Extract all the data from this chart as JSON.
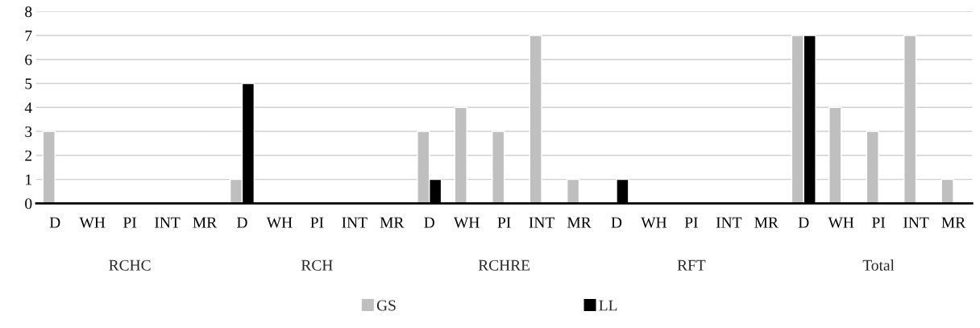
{
  "chart_data": {
    "type": "bar",
    "categories": [
      "D",
      "WH",
      "PI",
      "INT",
      "MR",
      "D",
      "WH",
      "PI",
      "INT",
      "MR",
      "D",
      "WH",
      "PI",
      "INT",
      "MR",
      "D",
      "WH",
      "PI",
      "INT",
      "MR",
      "D",
      "WH",
      "PI",
      "INT",
      "MR"
    ],
    "series": [
      {
        "name": "GS",
        "color": "#bfbfbf",
        "values": [
          3,
          null,
          null,
          null,
          null,
          1,
          null,
          null,
          null,
          null,
          3,
          4,
          3,
          7,
          1,
          null,
          null,
          null,
          null,
          null,
          7,
          4,
          3,
          7,
          1
        ]
      },
      {
        "name": "LL",
        "color": "#000000",
        "values": [
          null,
          null,
          null,
          null,
          null,
          5,
          null,
          null,
          null,
          null,
          1,
          null,
          null,
          null,
          null,
          1,
          null,
          null,
          null,
          null,
          7,
          null,
          null,
          null,
          null
        ]
      }
    ],
    "annotations": [
      "RCHC",
      "RCH",
      "RCHRE",
      "RFT",
      "Total"
    ],
    "ylim": [
      0,
      8
    ],
    "yticks": [
      0,
      1,
      2,
      3,
      4,
      5,
      6,
      7,
      8
    ],
    "grid": "y",
    "legend": "bottom"
  }
}
